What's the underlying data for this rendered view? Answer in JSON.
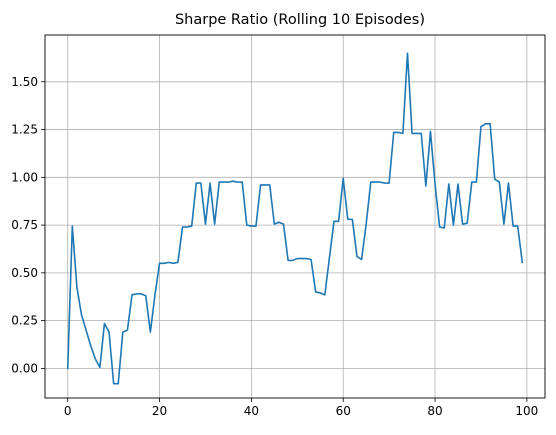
{
  "chart_data": {
    "type": "line",
    "title": "Sharpe Ratio (Rolling 10 Episodes)",
    "xlabel": "",
    "ylabel": "",
    "xlim": [
      -4.95,
      103.95
    ],
    "ylim": [
      -0.155,
      1.745
    ],
    "xticks": [
      0,
      20,
      40,
      60,
      80,
      100
    ],
    "xtick_labels": [
      "0",
      "20",
      "40",
      "60",
      "80",
      "100"
    ],
    "yticks": [
      0.0,
      0.25,
      0.5,
      0.75,
      1.0,
      1.25,
      1.5
    ],
    "ytick_labels": [
      "0.00",
      "0.25",
      "0.50",
      "0.75",
      "1.00",
      "1.25",
      "1.50"
    ],
    "grid": true,
    "series": [
      {
        "color": "#1f77b4",
        "x": [
          0,
          1,
          2,
          3,
          4,
          5,
          6,
          7,
          8,
          9,
          10,
          11,
          12,
          13,
          14,
          15,
          16,
          17,
          18,
          19,
          20,
          21,
          22,
          23,
          24,
          25,
          26,
          27,
          28,
          29,
          30,
          31,
          32,
          33,
          34,
          35,
          36,
          37,
          38,
          39,
          40,
          41,
          42,
          43,
          44,
          45,
          46,
          47,
          48,
          49,
          50,
          51,
          52,
          53,
          54,
          55,
          56,
          57,
          58,
          59,
          60,
          61,
          62,
          63,
          64,
          65,
          66,
          67,
          68,
          69,
          70,
          71,
          72,
          73,
          74,
          75,
          76,
          77,
          78,
          79,
          80,
          81,
          82,
          83,
          84,
          85,
          86,
          87,
          88,
          89,
          90,
          91,
          92,
          93,
          94,
          95,
          96,
          97,
          98,
          99
        ],
        "values": [
          0.0,
          0.745,
          0.425,
          0.28,
          0.2,
          0.12,
          0.05,
          0.005,
          0.235,
          0.19,
          -0.08,
          -0.08,
          0.19,
          0.2,
          0.385,
          0.39,
          0.39,
          0.38,
          0.19,
          0.385,
          0.55,
          0.55,
          0.555,
          0.55,
          0.555,
          0.74,
          0.74,
          0.745,
          0.97,
          0.97,
          0.755,
          0.97,
          0.755,
          0.975,
          0.975,
          0.975,
          0.98,
          0.975,
          0.975,
          0.75,
          0.745,
          0.745,
          0.96,
          0.96,
          0.96,
          0.755,
          0.765,
          0.755,
          0.565,
          0.565,
          0.575,
          0.575,
          0.575,
          0.57,
          0.4,
          0.395,
          0.385,
          0.58,
          0.77,
          0.77,
          0.995,
          0.78,
          0.78,
          0.585,
          0.57,
          0.755,
          0.975,
          0.975,
          0.975,
          0.97,
          0.97,
          1.235,
          1.235,
          1.23,
          1.65,
          1.23,
          1.23,
          1.23,
          0.955,
          1.24,
          0.965,
          0.74,
          0.735,
          0.965,
          0.75,
          0.965,
          0.755,
          0.76,
          0.975,
          0.975,
          1.265,
          1.28,
          1.28,
          0.99,
          0.975,
          0.755,
          0.97,
          0.745,
          0.745,
          0.555
        ]
      }
    ]
  }
}
